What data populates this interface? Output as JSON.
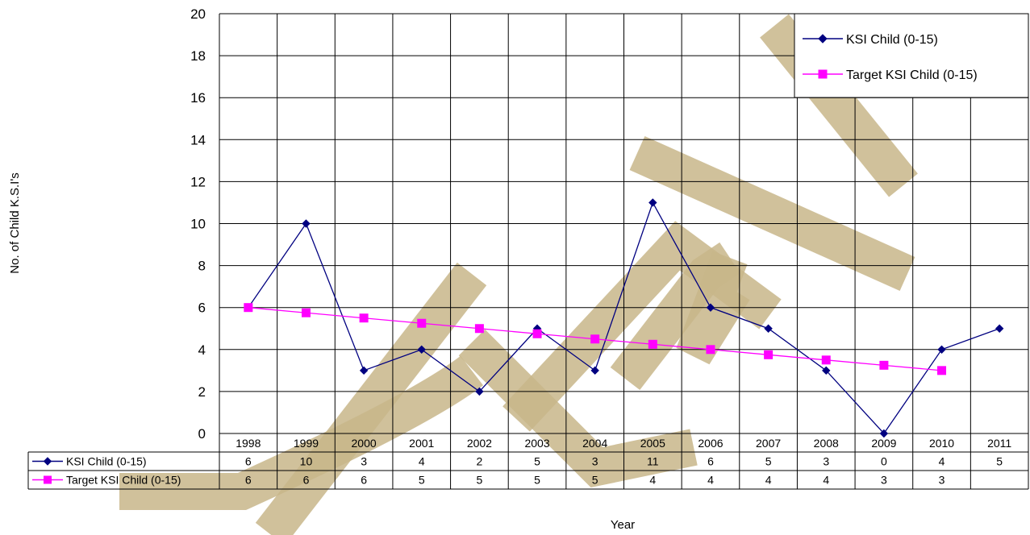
{
  "chart_data": {
    "type": "line",
    "title": "",
    "xlabel": "Year",
    "ylabel": "No. of Child K.S.I's",
    "categories": [
      "1998",
      "1999",
      "2000",
      "2001",
      "2002",
      "2003",
      "2004",
      "2005",
      "2006",
      "2007",
      "2008",
      "2009",
      "2010",
      "2011"
    ],
    "ylim": [
      0,
      20
    ],
    "yticks": [
      0,
      2,
      4,
      6,
      8,
      10,
      12,
      14,
      16,
      18,
      20
    ],
    "grid": true,
    "legend_position": "top-right",
    "series": [
      {
        "name": "KSI Child (0-15)",
        "marker": "diamond",
        "color": "#000080",
        "values": [
          6,
          10,
          3,
          4,
          2,
          5,
          3,
          11,
          6,
          5,
          3,
          0,
          4,
          5
        ],
        "table_values": [
          "6",
          "10",
          "3",
          "4",
          "2",
          "5",
          "3",
          "11",
          "6",
          "5",
          "3",
          "0",
          "4",
          "5"
        ]
      },
      {
        "name": "Target KSI Child (0-15)",
        "marker": "square",
        "color": "#FF00FF",
        "values": [
          6,
          5.75,
          5.5,
          5.25,
          5,
          4.75,
          4.5,
          4.25,
          4,
          3.75,
          3.5,
          3.25,
          3,
          null
        ],
        "table_values": [
          "6",
          "6",
          "6",
          "5",
          "5",
          "5",
          "5",
          "4",
          "4",
          "4",
          "4",
          "3",
          "3",
          ""
        ]
      }
    ],
    "watermark": "DRAFT",
    "watermark_color": "#C8B68A"
  }
}
